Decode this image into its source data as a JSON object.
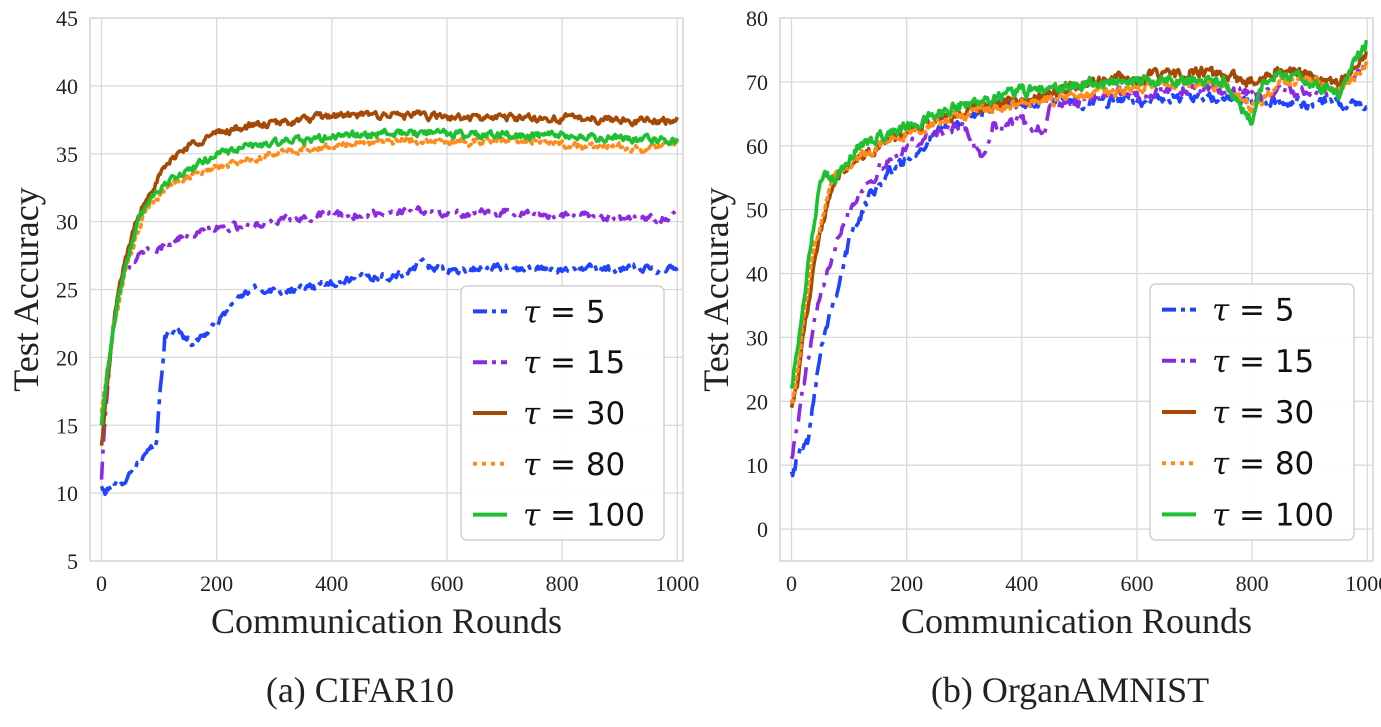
{
  "chart_data": [
    {
      "type": "line",
      "caption": "(a) CIFAR10",
      "xlabel": "Communication Rounds",
      "ylabel": "Test Accuracy",
      "xlim": [
        -20,
        1010
      ],
      "ylim": [
        5,
        45
      ],
      "xticks": [
        0,
        200,
        400,
        600,
        800,
        1000
      ],
      "yticks": [
        5,
        10,
        15,
        20,
        25,
        30,
        35,
        40,
        45
      ],
      "grid": true,
      "legend_position": "lower-right",
      "noise": 0.5,
      "series": [
        {
          "name": "τ = 5",
          "tau_value": "5",
          "color": "#1f43ff",
          "dash": "22 7 5 7",
          "x": [
            0,
            5,
            20,
            40,
            60,
            80,
            95,
            100,
            110,
            130,
            160,
            200,
            230,
            260,
            300,
            350,
            400,
            450,
            500,
            540,
            550,
            600,
            650,
            700,
            750,
            800,
            850,
            900,
            950,
            1000
          ],
          "y": [
            10.5,
            10.0,
            10.5,
            11.0,
            12.0,
            13.0,
            13.3,
            16.5,
            21.5,
            22.0,
            21.0,
            22.5,
            24.0,
            25.0,
            25.0,
            25.0,
            25.5,
            26.0,
            26.0,
            26.2,
            27.0,
            26.3,
            26.5,
            26.6,
            26.5,
            26.5,
            26.5,
            26.5,
            26.5,
            26.6
          ]
        },
        {
          "name": "τ = 15",
          "tau_value": "15",
          "color": "#8a2be2",
          "dash": "18 8 4 8",
          "x": [
            0,
            5,
            15,
            25,
            35,
            50,
            70,
            100,
            130,
            160,
            200,
            250,
            300,
            350,
            400,
            450,
            500,
            550,
            600,
            650,
            700,
            750,
            800,
            850,
            900,
            950,
            1000
          ],
          "y": [
            11.0,
            15.0,
            20.0,
            24.0,
            26.0,
            27.0,
            27.6,
            28.0,
            28.8,
            29.0,
            29.5,
            29.7,
            30.0,
            30.2,
            30.5,
            30.5,
            30.7,
            30.8,
            30.6,
            30.6,
            30.7,
            30.5,
            30.5,
            30.4,
            30.3,
            30.2,
            30.4
          ]
        },
        {
          "name": "τ = 30",
          "tau_value": "30",
          "color": "#a44a06",
          "dash": "",
          "x": [
            0,
            10,
            20,
            30,
            40,
            60,
            80,
            100,
            130,
            160,
            200,
            250,
            300,
            350,
            400,
            450,
            500,
            550,
            600,
            650,
            700,
            750,
            800,
            850,
            900,
            950,
            1000
          ],
          "y": [
            13.5,
            18.0,
            22.0,
            25.0,
            27.0,
            30.0,
            32.0,
            33.3,
            35.0,
            35.8,
            36.5,
            37.0,
            37.2,
            37.5,
            37.8,
            37.8,
            37.9,
            37.8,
            37.7,
            37.6,
            37.7,
            37.6,
            37.6,
            37.6,
            37.5,
            37.4,
            37.5
          ]
        },
        {
          "name": "τ = 80",
          "tau_value": "80",
          "color": "#ff8c1a",
          "dash": "3 5",
          "x": [
            0,
            10,
            20,
            30,
            40,
            60,
            80,
            100,
            130,
            160,
            200,
            250,
            300,
            350,
            400,
            450,
            500,
            550,
            600,
            650,
            700,
            750,
            800,
            850,
            900,
            950,
            1000
          ],
          "y": [
            16.0,
            19.0,
            22.0,
            24.0,
            26.0,
            29.0,
            31.0,
            32.0,
            33.0,
            33.5,
            34.0,
            34.5,
            35.0,
            35.3,
            35.6,
            35.8,
            36.0,
            36.0,
            35.9,
            35.9,
            36.0,
            35.9,
            35.7,
            35.5,
            35.5,
            35.3,
            35.8
          ]
        },
        {
          "name": "τ = 100",
          "tau_value": "100",
          "color": "#1ec032",
          "dash": "",
          "x": [
            0,
            10,
            20,
            30,
            40,
            60,
            80,
            100,
            130,
            160,
            200,
            250,
            300,
            350,
            400,
            450,
            500,
            550,
            600,
            650,
            700,
            750,
            800,
            850,
            900,
            950,
            1000
          ],
          "y": [
            15.0,
            19.0,
            22.0,
            24.5,
            26.5,
            29.5,
            31.5,
            32.5,
            33.3,
            34.0,
            35.0,
            35.5,
            35.8,
            36.0,
            36.2,
            36.4,
            36.5,
            36.5,
            36.5,
            36.4,
            36.4,
            36.3,
            36.3,
            36.2,
            36.1,
            36.0,
            36.0
          ]
        }
      ]
    },
    {
      "type": "line",
      "caption": "(b) OrganAMNIST",
      "xlabel": "Communication Rounds",
      "ylabel": "Test Accuracy",
      "xlim": [
        -20,
        1010
      ],
      "ylim": [
        -5,
        80
      ],
      "xticks": [
        0,
        200,
        400,
        600,
        800,
        1000
      ],
      "yticks": [
        0,
        10,
        20,
        30,
        40,
        50,
        60,
        70,
        80
      ],
      "grid": true,
      "legend_position": "lower-right",
      "noise": 1.6,
      "series": [
        {
          "name": "τ = 5",
          "tau_value": "5",
          "color": "#1f43ff",
          "dash": "22 7 5 7",
          "x": [
            0,
            10,
            20,
            30,
            40,
            50,
            60,
            80,
            100,
            120,
            140,
            160,
            200,
            250,
            300,
            350,
            400,
            450,
            500,
            550,
            600,
            650,
            700,
            750,
            800,
            850,
            900,
            950,
            1000
          ],
          "y": [
            9.0,
            11.0,
            13.0,
            14.0,
            22.0,
            28.0,
            32.0,
            38.0,
            45.0,
            49.0,
            53.0,
            55.0,
            58.0,
            62.0,
            64.0,
            66.0,
            66.5,
            67.0,
            67.0,
            67.0,
            67.0,
            67.2,
            67.5,
            67.2,
            67.0,
            67.0,
            66.5,
            66.5,
            66.0
          ]
        },
        {
          "name": "τ = 15",
          "tau_value": "15",
          "color": "#8a2be2",
          "dash": "18 8 4 8",
          "x": [
            0,
            10,
            20,
            40,
            60,
            80,
            100,
            120,
            150,
            200,
            250,
            300,
            330,
            350,
            400,
            440,
            450,
            500,
            550,
            600,
            650,
            700,
            750,
            800,
            850,
            900,
            950,
            1000
          ],
          "y": [
            11.0,
            16.0,
            22.0,
            32.0,
            40.0,
            46.0,
            50.0,
            53.0,
            56.0,
            60.0,
            62.0,
            63.0,
            58.0,
            63.0,
            64.0,
            62.0,
            66.0,
            67.0,
            68.0,
            68.0,
            68.5,
            69.0,
            68.5,
            68.0,
            68.5,
            68.0,
            69.0,
            72.0
          ]
        },
        {
          "name": "τ = 30",
          "tau_value": "30",
          "color": "#a44a06",
          "dash": "",
          "x": [
            0,
            10,
            20,
            40,
            60,
            80,
            100,
            120,
            150,
            200,
            250,
            300,
            350,
            400,
            450,
            500,
            550,
            600,
            650,
            700,
            750,
            800,
            850,
            900,
            950,
            1000
          ],
          "y": [
            19.0,
            23.0,
            30.0,
            42.0,
            50.0,
            55.0,
            57.0,
            58.0,
            60.0,
            62.0,
            64.0,
            65.0,
            66.5,
            67.0,
            68.0,
            69.5,
            70.5,
            70.5,
            71.0,
            71.5,
            71.0,
            70.0,
            72.0,
            71.0,
            70.0,
            74.5
          ]
        },
        {
          "name": "τ = 80",
          "tau_value": "80",
          "color": "#ff8c1a",
          "dash": "3 5",
          "x": [
            0,
            10,
            20,
            40,
            60,
            80,
            100,
            120,
            150,
            200,
            250,
            300,
            350,
            400,
            450,
            500,
            550,
            600,
            650,
            700,
            750,
            800,
            850,
            900,
            950,
            1000
          ],
          "y": [
            20.0,
            24.0,
            32.0,
            44.0,
            52.0,
            56.0,
            57.5,
            58.5,
            60.0,
            62.0,
            63.5,
            65.0,
            66.0,
            66.5,
            67.0,
            68.0,
            68.5,
            69.0,
            70.0,
            70.0,
            69.5,
            66.0,
            70.0,
            70.0,
            69.0,
            73.0
          ]
        },
        {
          "name": "τ = 100",
          "tau_value": "100",
          "color": "#1ec032",
          "dash": "",
          "x": [
            0,
            10,
            20,
            40,
            50,
            60,
            80,
            100,
            120,
            150,
            200,
            250,
            300,
            350,
            400,
            450,
            500,
            550,
            600,
            650,
            700,
            750,
            790,
            800,
            820,
            850,
            900,
            950,
            1000
          ],
          "y": [
            22.0,
            28.0,
            36.0,
            48.0,
            54.0,
            55.0,
            55.0,
            58.0,
            60.0,
            61.5,
            63.0,
            65.0,
            66.5,
            67.5,
            68.5,
            69.0,
            69.5,
            70.0,
            70.0,
            70.0,
            70.5,
            70.0,
            65.0,
            64.0,
            70.0,
            71.5,
            70.0,
            68.0,
            76.5
          ]
        }
      ]
    }
  ]
}
